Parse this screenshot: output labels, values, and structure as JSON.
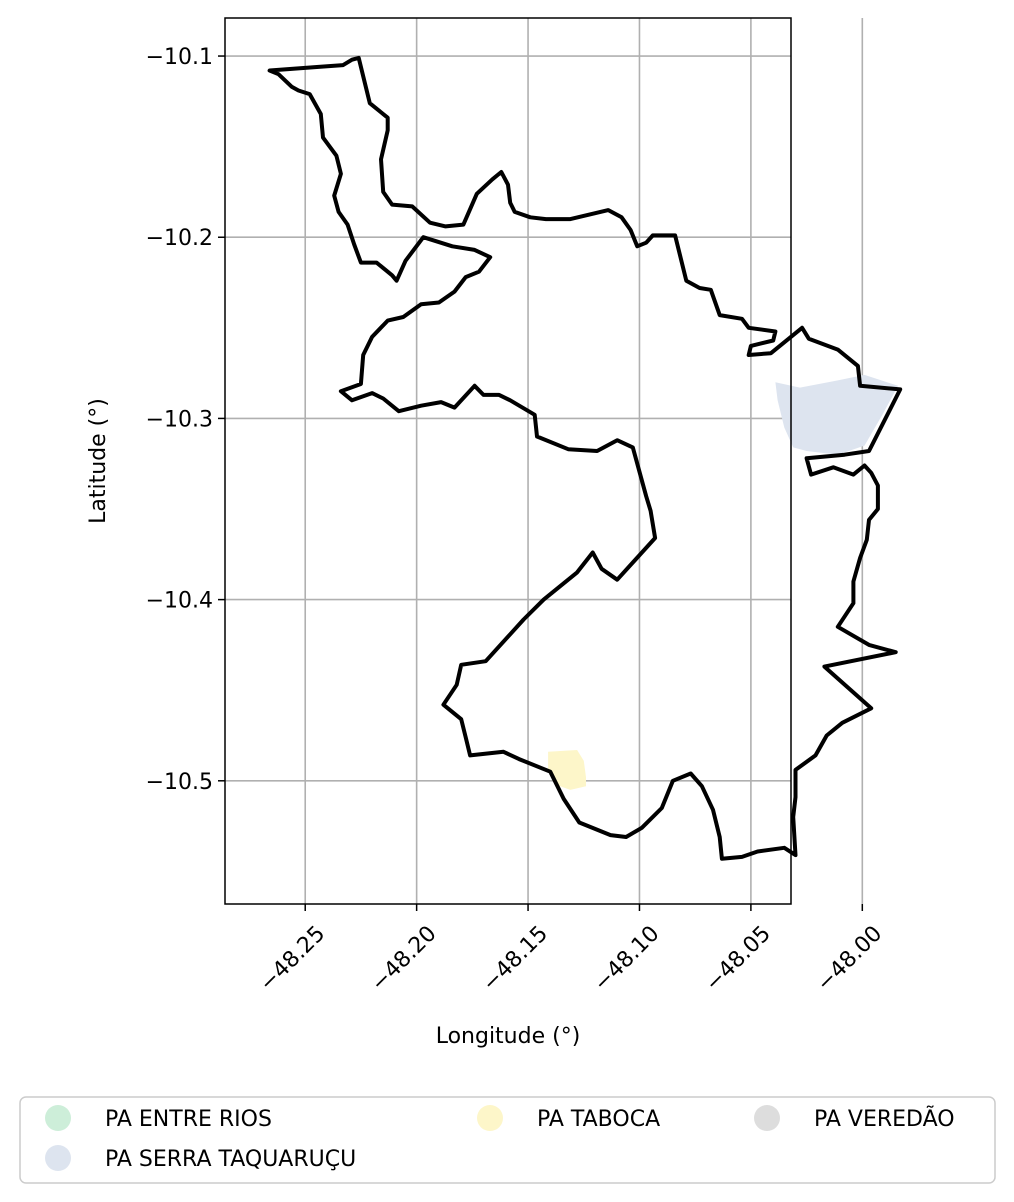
{
  "chart_data": {
    "type": "map",
    "xlabel": "Longitude (°)",
    "ylabel": "Latitude (°)",
    "xlim": [
      -48.286,
      -48.032
    ],
    "ylim": [
      -10.568,
      -10.079
    ],
    "grid": true,
    "x_ticks": [
      -48.25,
      -48.2,
      -48.15,
      -48.1,
      -48.05,
      -48.0
    ],
    "x_tick_labels": [
      "−48.25",
      "−48.20",
      "−48.15",
      "−48.10",
      "−48.05",
      "−48.00"
    ],
    "y_ticks": [
      -10.1,
      -10.2,
      -10.3,
      -10.4,
      -10.5
    ],
    "y_tick_labels": [
      "−10.1",
      "−10.2",
      "−10.3",
      "−10.4",
      "−10.5"
    ],
    "legend_placement": "bottom",
    "legend": [
      {
        "label": "PA ENTRE RIOS",
        "color": "#cdeed9"
      },
      {
        "label": "PA SERRA TAQUARUÇU",
        "color": "#dde4ef"
      },
      {
        "label": "PA TABOCA",
        "color": "#fdf6c9"
      },
      {
        "label": "PA VEREDÃO",
        "color": "#dddddd"
      }
    ],
    "areas": [
      {
        "name": "PA SERRA TAQUARUÇU",
        "color": "#dde4ef",
        "polygon": [
          [
            -48.039,
            -10.28
          ],
          [
            -48.028,
            -10.283
          ],
          [
            -48.011,
            -10.279
          ],
          [
            -47.999,
            -10.276
          ],
          [
            -47.984,
            -10.282
          ],
          [
            -47.991,
            -10.298
          ],
          [
            -47.999,
            -10.315
          ],
          [
            -48.011,
            -10.32
          ],
          [
            -48.025,
            -10.318
          ],
          [
            -48.031,
            -10.316
          ],
          [
            -48.035,
            -10.305
          ],
          [
            -48.038,
            -10.29
          ]
        ]
      },
      {
        "name": "PA TABOCA",
        "color": "#fdf6c9",
        "polygon": [
          [
            -48.141,
            -10.484
          ],
          [
            -48.128,
            -10.483
          ],
          [
            -48.125,
            -10.489
          ],
          [
            -48.124,
            -10.498
          ],
          [
            -48.124,
            -10.503
          ],
          [
            -48.131,
            -10.505
          ],
          [
            -48.138,
            -10.502
          ],
          [
            -48.141,
            -10.494
          ]
        ]
      }
    ],
    "boundary": [
      [
        -48.266,
        -10.108
      ],
      [
        -48.244,
        -10.106
      ],
      [
        -48.233,
        -10.105
      ],
      [
        -48.229,
        -10.102
      ],
      [
        -48.226,
        -10.101
      ],
      [
        -48.221,
        -10.126
      ],
      [
        -48.213,
        -10.134
      ],
      [
        -48.213,
        -10.141
      ],
      [
        -48.216,
        -10.157
      ],
      [
        -48.215,
        -10.175
      ],
      [
        -48.211,
        -10.182
      ],
      [
        -48.202,
        -10.183
      ],
      [
        -48.194,
        -10.192
      ],
      [
        -48.187,
        -10.194
      ],
      [
        -48.179,
        -10.193
      ],
      [
        -48.173,
        -10.176
      ],
      [
        -48.166,
        -10.168
      ],
      [
        -48.162,
        -10.164
      ],
      [
        -48.159,
        -10.171
      ],
      [
        -48.158,
        -10.181
      ],
      [
        -48.156,
        -10.186
      ],
      [
        -48.149,
        -10.189
      ],
      [
        -48.142,
        -10.19
      ],
      [
        -48.131,
        -10.19
      ],
      [
        -48.114,
        -10.185
      ],
      [
        -48.108,
        -10.189
      ],
      [
        -48.104,
        -10.196
      ],
      [
        -48.101,
        -10.205
      ],
      [
        -48.097,
        -10.203
      ],
      [
        -48.094,
        -10.199
      ],
      [
        -48.084,
        -10.199
      ],
      [
        -48.079,
        -10.224
      ],
      [
        -48.073,
        -10.228
      ],
      [
        -48.068,
        -10.229
      ],
      [
        -48.064,
        -10.243
      ],
      [
        -48.054,
        -10.245
      ],
      [
        -48.051,
        -10.25
      ],
      [
        -48.039,
        -10.252
      ],
      [
        -48.04,
        -10.257
      ],
      [
        -48.05,
        -10.26
      ],
      [
        -48.051,
        -10.265
      ],
      [
        -48.041,
        -10.264
      ],
      [
        -48.027,
        -10.25
      ],
      [
        -48.024,
        -10.256
      ],
      [
        -48.011,
        -10.262
      ],
      [
        -48.002,
        -10.271
      ],
      [
        -48.001,
        -10.282
      ],
      [
        -47.983,
        -10.284
      ],
      [
        -47.997,
        -10.318
      ],
      [
        -48.008,
        -10.32
      ],
      [
        -48.025,
        -10.322
      ],
      [
        -48.023,
        -10.331
      ],
      [
        -48.013,
        -10.327
      ],
      [
        -48.004,
        -10.331
      ],
      [
        -47.999,
        -10.326
      ],
      [
        -47.996,
        -10.33
      ],
      [
        -47.993,
        -10.337
      ],
      [
        -47.993,
        -10.35
      ],
      [
        -47.997,
        -10.356
      ],
      [
        -47.998,
        -10.367
      ],
      [
        -48.001,
        -10.377
      ],
      [
        -48.004,
        -10.39
      ],
      [
        -48.004,
        -10.402
      ],
      [
        -48.011,
        -10.415
      ],
      [
        -47.997,
        -10.425
      ],
      [
        -47.985,
        -10.429
      ],
      [
        -48.017,
        -10.437
      ],
      [
        -47.996,
        -10.46
      ],
      [
        -48.009,
        -10.468
      ],
      [
        -48.016,
        -10.475
      ],
      [
        -48.021,
        -10.486
      ],
      [
        -48.03,
        -10.494
      ],
      [
        -48.03,
        -10.509
      ],
      [
        -48.031,
        -10.52
      ],
      [
        -48.03,
        -10.541
      ],
      [
        -48.035,
        -10.537
      ],
      [
        -48.047,
        -10.539
      ],
      [
        -48.054,
        -10.542
      ],
      [
        -48.063,
        -10.543
      ],
      [
        -48.064,
        -10.531
      ],
      [
        -48.067,
        -10.516
      ],
      [
        -48.072,
        -10.503
      ],
      [
        -48.077,
        -10.496
      ],
      [
        -48.085,
        -10.5
      ],
      [
        -48.09,
        -10.515
      ],
      [
        -48.099,
        -10.526
      ],
      [
        -48.106,
        -10.531
      ],
      [
        -48.113,
        -10.53
      ],
      [
        -48.127,
        -10.523
      ],
      [
        -48.134,
        -10.51
      ],
      [
        -48.14,
        -10.495
      ],
      [
        -48.154,
        -10.488
      ],
      [
        -48.161,
        -10.484
      ],
      [
        -48.176,
        -10.486
      ],
      [
        -48.178,
        -10.476
      ],
      [
        -48.18,
        -10.466
      ],
      [
        -48.188,
        -10.458
      ],
      [
        -48.182,
        -10.447
      ],
      [
        -48.18,
        -10.436
      ],
      [
        -48.169,
        -10.434
      ],
      [
        -48.152,
        -10.411
      ],
      [
        -48.143,
        -10.4
      ],
      [
        -48.128,
        -10.385
      ],
      [
        -48.121,
        -10.374
      ],
      [
        -48.117,
        -10.383
      ],
      [
        -48.11,
        -10.389
      ],
      [
        -48.093,
        -10.366
      ],
      [
        -48.095,
        -10.351
      ],
      [
        -48.097,
        -10.343
      ],
      [
        -48.103,
        -10.316
      ],
      [
        -48.11,
        -10.312
      ],
      [
        -48.119,
        -10.318
      ],
      [
        -48.132,
        -10.317
      ],
      [
        -48.146,
        -10.31
      ],
      [
        -48.147,
        -10.298
      ],
      [
        -48.158,
        -10.29
      ],
      [
        -48.163,
        -10.287
      ],
      [
        -48.17,
        -10.287
      ],
      [
        -48.174,
        -10.282
      ],
      [
        -48.183,
        -10.294
      ],
      [
        -48.189,
        -10.291
      ],
      [
        -48.198,
        -10.293
      ],
      [
        -48.208,
        -10.296
      ],
      [
        -48.215,
        -10.289
      ],
      [
        -48.22,
        -10.286
      ],
      [
        -48.229,
        -10.29
      ],
      [
        -48.234,
        -10.285
      ],
      [
        -48.225,
        -10.281
      ],
      [
        -48.224,
        -10.265
      ],
      [
        -48.22,
        -10.255
      ],
      [
        -48.213,
        -10.246
      ],
      [
        -48.206,
        -10.244
      ],
      [
        -48.198,
        -10.237
      ],
      [
        -48.19,
        -10.236
      ],
      [
        -48.183,
        -10.23
      ],
      [
        -48.178,
        -10.222
      ],
      [
        -48.172,
        -10.219
      ],
      [
        -48.167,
        -10.211
      ],
      [
        -48.174,
        -10.207
      ],
      [
        -48.184,
        -10.205
      ],
      [
        -48.197,
        -10.2
      ],
      [
        -48.205,
        -10.213
      ],
      [
        -48.209,
        -10.224
      ],
      [
        -48.211,
        -10.221
      ],
      [
        -48.214,
        -10.218
      ],
      [
        -48.218,
        -10.214
      ],
      [
        -48.225,
        -10.214
      ],
      [
        -48.228,
        -10.204
      ],
      [
        -48.231,
        -10.193
      ],
      [
        -48.235,
        -10.186
      ],
      [
        -48.237,
        -10.177
      ],
      [
        -48.234,
        -10.165
      ],
      [
        -48.236,
        -10.155
      ],
      [
        -48.242,
        -10.145
      ],
      [
        -48.243,
        -10.132
      ],
      [
        -48.248,
        -10.121
      ],
      [
        -48.253,
        -10.119
      ],
      [
        -48.256,
        -10.117
      ],
      [
        -48.262,
        -10.11
      ]
    ]
  }
}
